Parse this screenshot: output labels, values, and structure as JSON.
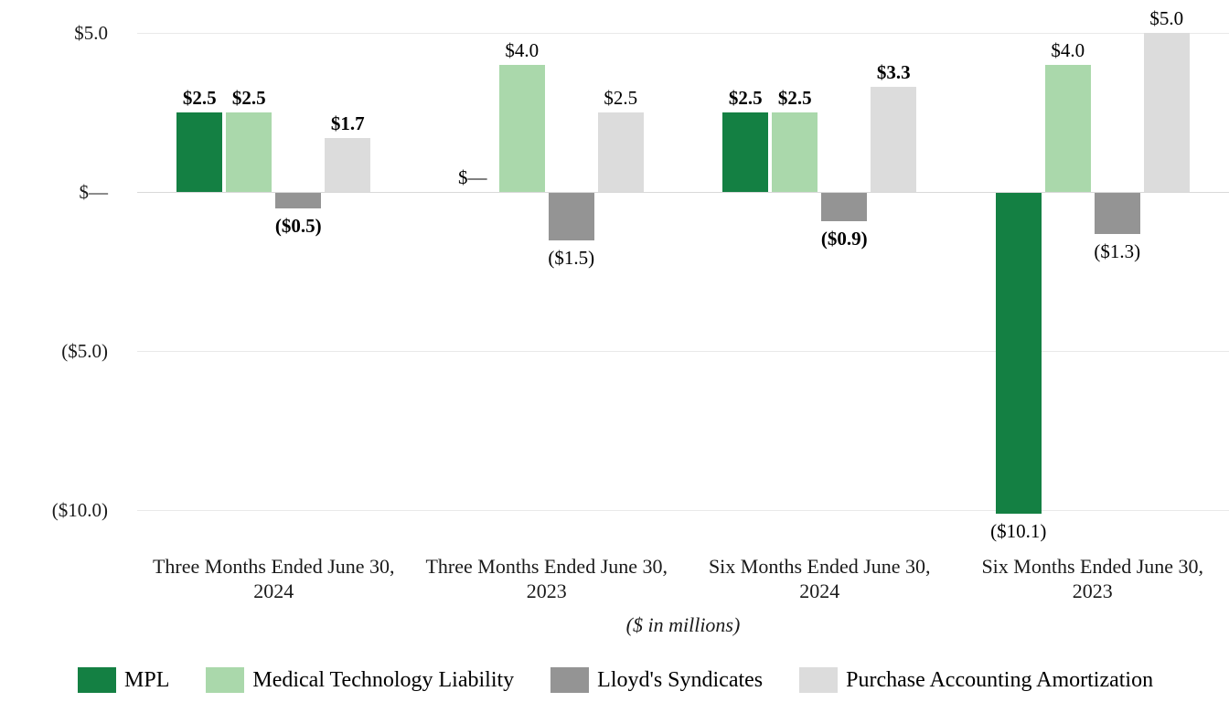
{
  "chart_data": {
    "type": "bar",
    "title": "",
    "unit_note": "($ in millions)",
    "y_axis": {
      "min": -10.5,
      "max": 5.5,
      "grid": true,
      "ticks": [
        {
          "value": 5,
          "label": "$5.0"
        },
        {
          "value": 0,
          "label": "$—"
        },
        {
          "value": -5,
          "label": "($5.0)"
        },
        {
          "value": -10,
          "label": "($10.0)"
        }
      ]
    },
    "categories": [
      {
        "line1": "Three Months Ended June 30,",
        "line2": "2024",
        "bold_labels": true
      },
      {
        "line1": "Three Months Ended June 30,",
        "line2": "2023",
        "bold_labels": false
      },
      {
        "line1": "Six Months Ended June 30,",
        "line2": "2024",
        "bold_labels": true
      },
      {
        "line1": "Six Months Ended June 30,",
        "line2": "2023",
        "bold_labels": false
      }
    ],
    "series": [
      {
        "name": "MPL",
        "color": "#148043",
        "values": [
          2.5,
          0,
          2.5,
          -10.1
        ],
        "labels": [
          "$2.5",
          "$—",
          "$2.5",
          "($10.1)"
        ]
      },
      {
        "name": "Medical Technology Liability",
        "color": "#aad8ab",
        "values": [
          2.5,
          4.0,
          2.5,
          4.0
        ],
        "labels": [
          "$2.5",
          "$4.0",
          "$2.5",
          "$4.0"
        ]
      },
      {
        "name": "Lloyd's Syndicates",
        "color": "#949494",
        "values": [
          -0.5,
          -1.5,
          -0.9,
          -1.3
        ],
        "labels": [
          "($0.5)",
          "($1.5)",
          "($0.9)",
          "($1.3)"
        ]
      },
      {
        "name": "Purchase Accounting Amortization",
        "color": "#dcdcdc",
        "values": [
          1.7,
          2.5,
          3.3,
          5.0
        ],
        "labels": [
          "$1.7",
          "$2.5",
          "$3.3",
          "$5.0"
        ]
      }
    ],
    "legend": {
      "position": "bottom-left",
      "items": [
        "MPL",
        "Medical Technology Liability",
        "Lloyd's Syndicates",
        "Purchase Accounting Amortization"
      ]
    }
  }
}
